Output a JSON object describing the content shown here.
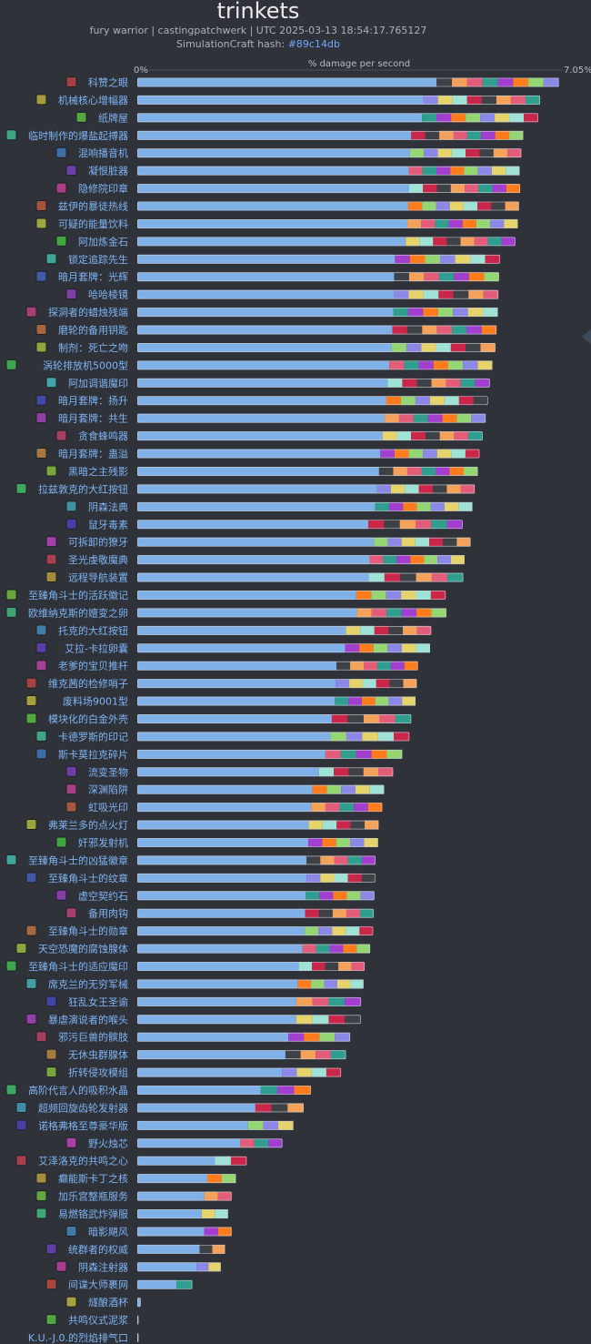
{
  "colors": {
    "base": "#7fb0e8",
    "segments": [
      "#3e4246",
      "#93d672",
      "#f4a259",
      "#8c88e8",
      "#e35d7b",
      "#e6d36a",
      "#2f9e8f",
      "#9fe3d6",
      "#a23fcf",
      "#c9264a",
      "#ff7b1c"
    ]
  },
  "chart_data": {
    "type": "bar",
    "title": "trinkets",
    "subtitle": "fury warrior | castingpatchwerk | UTC 2025-03-13 18:54:17.765127",
    "hash_label": "SimulationCraft hash: ",
    "hash_value": "#89c14db",
    "xlabel": "% damage per second",
    "xlim_labels": [
      "0%",
      "7.05%"
    ],
    "xlim": [
      0,
      7.05
    ],
    "categories": [
      "科赞之眼",
      "机械核心增幅器",
      "纸牌屋",
      "临时制作的爆盐起搏器",
      "混响播音机",
      "凝恨脏器",
      "隐修院印章",
      "兹伊的暴徒热线",
      "可疑的能量饮料",
      "阿加炼金石",
      "锁定追踪先生",
      "暗月套牌：光辉",
      "哈哈棱镜",
      "探洞者的蜡烛残端",
      "磨轮的备用钥匙",
      "制剂：死亡之吻",
      "涡轮排放机5000型",
      "阿加调谐魔印",
      "暗月套牌：扬升",
      "暗月套牌：共生",
      "贪食蜂鸣器",
      "暗月套牌：蛊溢",
      "黑暗之主残影",
      "拉兹敦克的大红按钮",
      "阴森法典",
      "鼠牙毒素",
      "可拆卸的獠牙",
      "圣光虔敬魔典",
      "远程导航装置",
      "至臻角斗士的活跃徽记",
      "欧维纳克斯的嬗变之卵",
      "托克的大红按钮",
      "艾拉-卡拉卵囊",
      "老爹的宝贝推杆",
      "维克茜的检修哨子",
      "废料场9001型",
      "模块化的白金外壳",
      "卡德罗斯的印记",
      "斯卡莫拉克碎片",
      "流变圣物",
      "深渊陷阱",
      "虹吸光印",
      "弗莱兰多的点火灯",
      "奸邪发射机",
      "至臻角斗士的凶猛徽章",
      "至臻角斗士的纹章",
      "虚空契约石",
      "备用肉钩",
      "至臻角斗士的勋章",
      "天空恐魔的腐蚀腺体",
      "至臻角斗士的适应魔印",
      "席克兰的无穷军械",
      "狂乱女王圣谕",
      "暴虐演说者的喉头",
      "邪污巨兽的髌肢",
      "无休虫群腺体",
      "折转侵攻模组",
      "高阶代言人的吸积水晶",
      "超频回旋齿轮发射器",
      "诺格弗格至尊豪华版",
      "野火烛芯",
      "艾泽洛克的共鸣之心",
      "癫能斯卡丁之核",
      "加乐宫整瓶服务",
      "易燃铬武炸弹服",
      "暗影飓风",
      "统群者的权威",
      "阴森注射器",
      "间谍大师裹网",
      "燧酿酒杯",
      "共鸣仪式泥浆",
      "K.U.-J.0.的烈焰排气口"
    ],
    "values": [
      6.97,
      6.66,
      6.63,
      6.38,
      6.35,
      6.32,
      6.33,
      6.31,
      6.29,
      6.25,
      6.0,
      5.98,
      5.97,
      5.96,
      5.94,
      5.92,
      5.87,
      5.83,
      5.8,
      5.76,
      5.71,
      5.66,
      5.63,
      5.58,
      5.54,
      5.38,
      5.51,
      5.41,
      5.39,
      5.1,
      5.11,
      4.86,
      4.84,
      4.64,
      4.62,
      4.6,
      4.53,
      4.5,
      4.38,
      4.23,
      4.08,
      4.05,
      3.99,
      3.98,
      3.94,
      3.94,
      3.92,
      3.91,
      3.9,
      3.85,
      3.76,
      3.74,
      3.7,
      3.7,
      3.52,
      3.45,
      3.37,
      2.87,
      2.75,
      2.58,
      2.4,
      1.81,
      1.63,
      1.56,
      1.5,
      1.56,
      1.45,
      1.38,
      0.91,
      0.06,
      0.02,
      0.02
    ]
  }
}
